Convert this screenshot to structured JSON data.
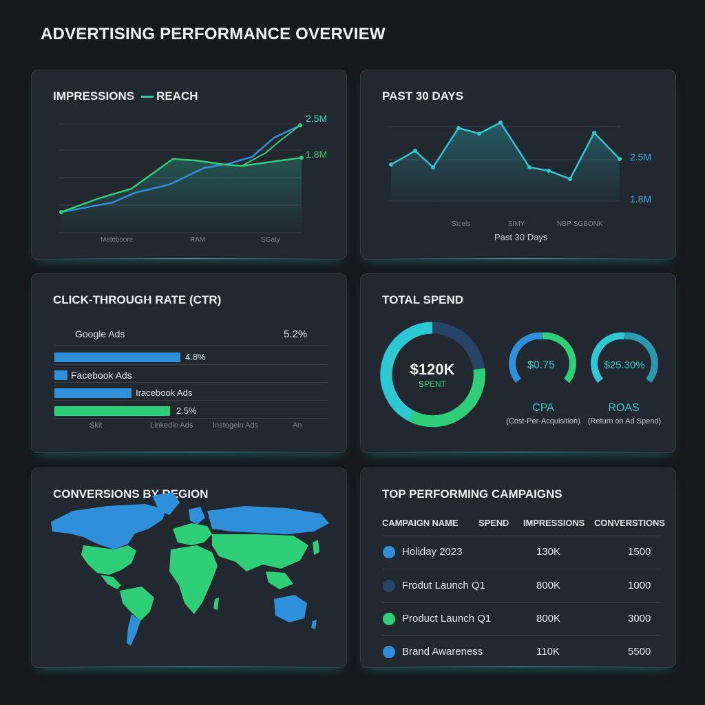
{
  "page": {
    "title": "ADVERTISING PERFORMANCE OVERVIEW"
  },
  "impressions_card": {
    "title": "IMPRESSIONS",
    "legend": "REACH",
    "value_high": "2.5M",
    "value_low": "1.8M",
    "x_labels": [
      "Metcboore",
      "RAM",
      "SGaty"
    ],
    "colors": {
      "blue": "#2f8fd8",
      "green": "#2fcf7a"
    }
  },
  "past30_card": {
    "title": "PAST 30 DAYS",
    "value_high": "2.5M",
    "value_low": "1.8M",
    "x_labels": [
      "Stcels",
      "SIMY",
      "NBP-SGBONK"
    ],
    "caption": "Past 30 Days",
    "color": "#2ec7d4"
  },
  "ctr_card": {
    "title": "CLICK-THROUGH RATE (CTR)",
    "top_label": "Google Ads",
    "top_value": "5.2%",
    "rows": [
      {
        "label": "",
        "value": "4.8%",
        "fill": 0.48,
        "color": "#2f8fd8"
      },
      {
        "label": "Facebook Ads",
        "value": "",
        "fill": 0.05,
        "color": "#2f8fd8"
      },
      {
        "label": "Iracebook Ads",
        "value": "",
        "fill": 0.28,
        "color": "#2f8fd8"
      },
      {
        "label": "",
        "value": "2.5%",
        "fill": 0.42,
        "color": "#2fcf7a"
      }
    ],
    "axis": [
      "Skit",
      "Linkedin Ads",
      "Instegein Ads",
      "An"
    ]
  },
  "spend_card": {
    "title": "TOTAL SPEND",
    "spent_value": "$120K",
    "spent_label": "SPENT",
    "cpa_value": "$0.75",
    "cpa_name": "CPA",
    "cpa_desc": "(Cost-Per-Acquisition)",
    "roas_value": "$25.30%",
    "roas_name": "ROAS",
    "roas_desc": "(Return on Ad Spend)",
    "colors": {
      "teal": "#2ec7d4",
      "green": "#2fcf7a",
      "navy": "#274466",
      "blue": "#2f8fd8"
    }
  },
  "region_card": {
    "title": "CONVERSIONS BY REGION",
    "colors": {
      "blue": "#2f8fd8",
      "green": "#2fcf7a"
    }
  },
  "campaigns_card": {
    "title": "TOP PERFORMING CAMPAIGNS",
    "headers": [
      "CAMPAIGN NAME",
      "SPEND",
      "IMPRESSIONS",
      "CONVERSTIONS"
    ],
    "rows": [
      {
        "name": "Holiday 2023",
        "impressions": "130K",
        "conversions": "1500",
        "color": "#2f8fd8"
      },
      {
        "name": "Frodut Launch Q1",
        "impressions": "800K",
        "conversions": "1000",
        "color": "#274466"
      },
      {
        "name": "Product Launch Q1",
        "impressions": "800K",
        "conversions": "3000",
        "color": "#2fcf7a"
      },
      {
        "name": "Brand Awareness",
        "impressions": "110K",
        "conversions": "5500",
        "color": "#2f8fd8"
      }
    ]
  }
}
